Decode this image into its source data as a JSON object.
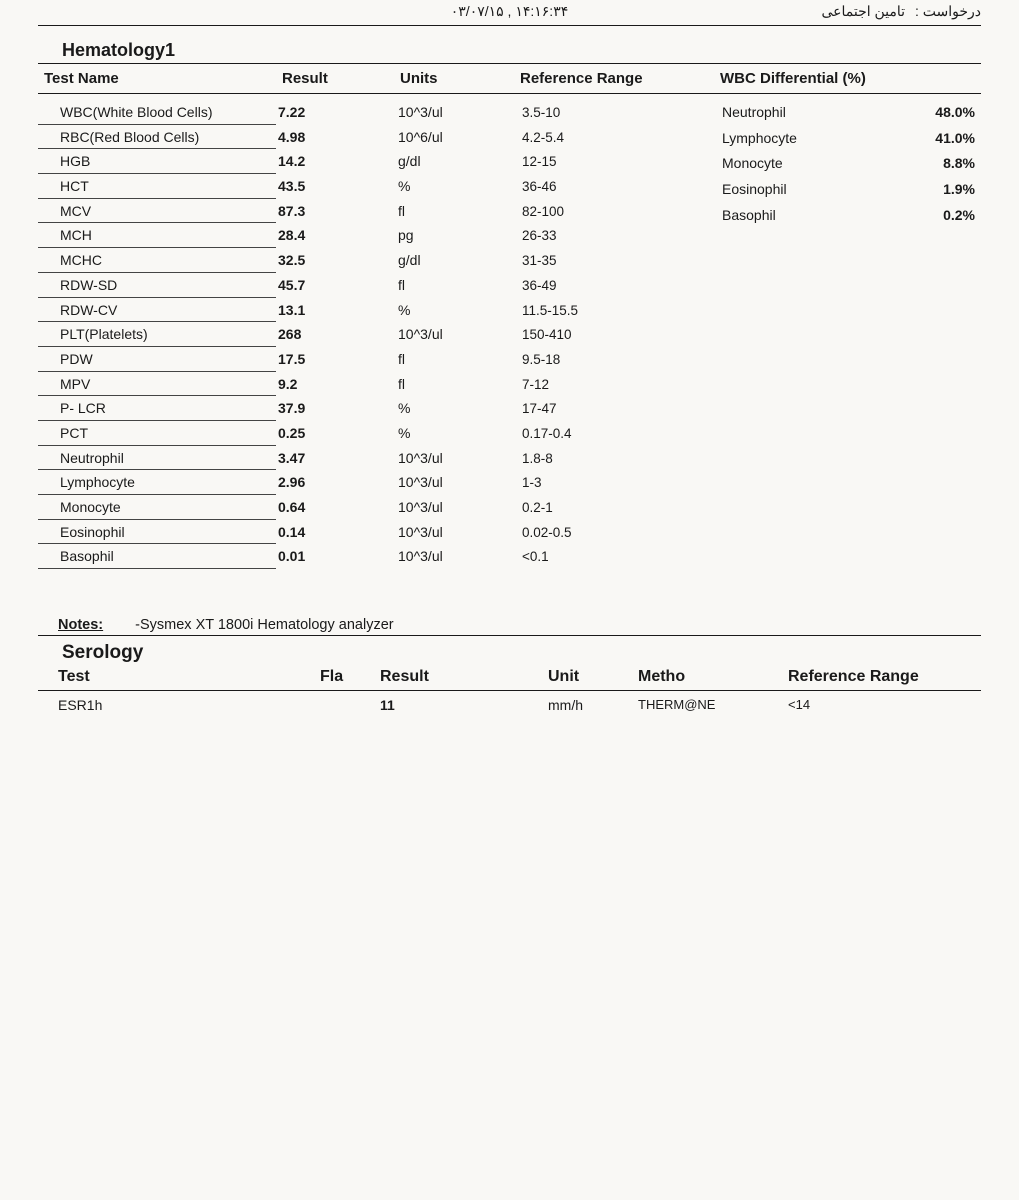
{
  "meta": {
    "timestamp": "۰۳/۰۷/۱۵ , ۱۴:۱۶:۳۴",
    "request_label": "درخواست :",
    "request_value": "تامین اجتماعی"
  },
  "hematology": {
    "section_title": "Hematology1",
    "headers": {
      "name": "Test Name",
      "result": "Result",
      "units": "Units",
      "ref": "Reference Range",
      "diff": "WBC Differential (%)"
    },
    "rows": [
      {
        "name": "WBC(White Blood Cells)",
        "result": "7.22",
        "units": "10^3/ul",
        "ref": "3.5-10"
      },
      {
        "name": "RBC(Red Blood Cells)",
        "result": "4.98",
        "units": "10^6/ul",
        "ref": "4.2-5.4"
      },
      {
        "name": "HGB",
        "result": "14.2",
        "units": "g/dl",
        "ref": "12-15"
      },
      {
        "name": "HCT",
        "result": "43.5",
        "units": "%",
        "ref": "36-46"
      },
      {
        "name": "MCV",
        "result": "87.3",
        "units": "fl",
        "ref": "82-100"
      },
      {
        "name": "MCH",
        "result": "28.4",
        "units": "pg",
        "ref": "26-33"
      },
      {
        "name": "MCHC",
        "result": "32.5",
        "units": "g/dl",
        "ref": "31-35"
      },
      {
        "name": "RDW-SD",
        "result": "45.7",
        "units": "fl",
        "ref": "36-49"
      },
      {
        "name": "RDW-CV",
        "result": "13.1",
        "units": "%",
        "ref": "11.5-15.5"
      },
      {
        "name": "PLT(Platelets)",
        "result": "268",
        "units": "10^3/ul",
        "ref": "150-410"
      },
      {
        "name": "PDW",
        "result": "17.5",
        "units": "fl",
        "ref": "9.5-18"
      },
      {
        "name": "MPV",
        "result": "9.2",
        "units": "fl",
        "ref": "7-12"
      },
      {
        "name": "P- LCR",
        "result": "37.9",
        "units": "%",
        "ref": "17-47"
      },
      {
        "name": "PCT",
        "result": "0.25",
        "units": "%",
        "ref": "0.17-0.4"
      },
      {
        "name": "Neutrophil",
        "result": "3.47",
        "units": "10^3/ul",
        "ref": "1.8-8"
      },
      {
        "name": "Lymphocyte",
        "result": "2.96",
        "units": "10^3/ul",
        "ref": "1-3"
      },
      {
        "name": "Monocyte",
        "result": "0.64",
        "units": "10^3/ul",
        "ref": "0.2-1"
      },
      {
        "name": "Eosinophil",
        "result": "0.14",
        "units": "10^3/ul",
        "ref": "0.02-0.5"
      },
      {
        "name": "Basophil",
        "result": "0.01",
        "units": "10^3/ul",
        "ref": "<0.1"
      }
    ],
    "diff": [
      {
        "name": "Neutrophil",
        "value": "48.0%"
      },
      {
        "name": "Lymphocyte",
        "value": "41.0%"
      },
      {
        "name": "Monocyte",
        "value": "8.8%"
      },
      {
        "name": "Eosinophil",
        "value": "1.9%"
      },
      {
        "name": "Basophil",
        "value": "0.2%"
      }
    ],
    "notes_label": "Notes:",
    "notes_text": "-Sysmex XT 1800i Hematology analyzer"
  },
  "serology": {
    "section_title": "Serology",
    "headers": {
      "test": "Test",
      "fla": "Fla",
      "result": "Result",
      "unit": "Unit",
      "metho": "Metho",
      "ref": "Reference Range"
    },
    "rows": [
      {
        "test": "ESR1h",
        "fla": "",
        "result": "11",
        "unit": "mm/h",
        "metho": "THERM@NE",
        "ref": "<14"
      }
    ]
  },
  "style": {
    "background_color": "#f9f8f5",
    "rule_color": "#1a1a1a",
    "text_color": "#1a1a1a",
    "underline_color": "#444444",
    "title_fontsize_pt": 14,
    "body_fontsize_pt": 11,
    "bold_weight": 700
  }
}
